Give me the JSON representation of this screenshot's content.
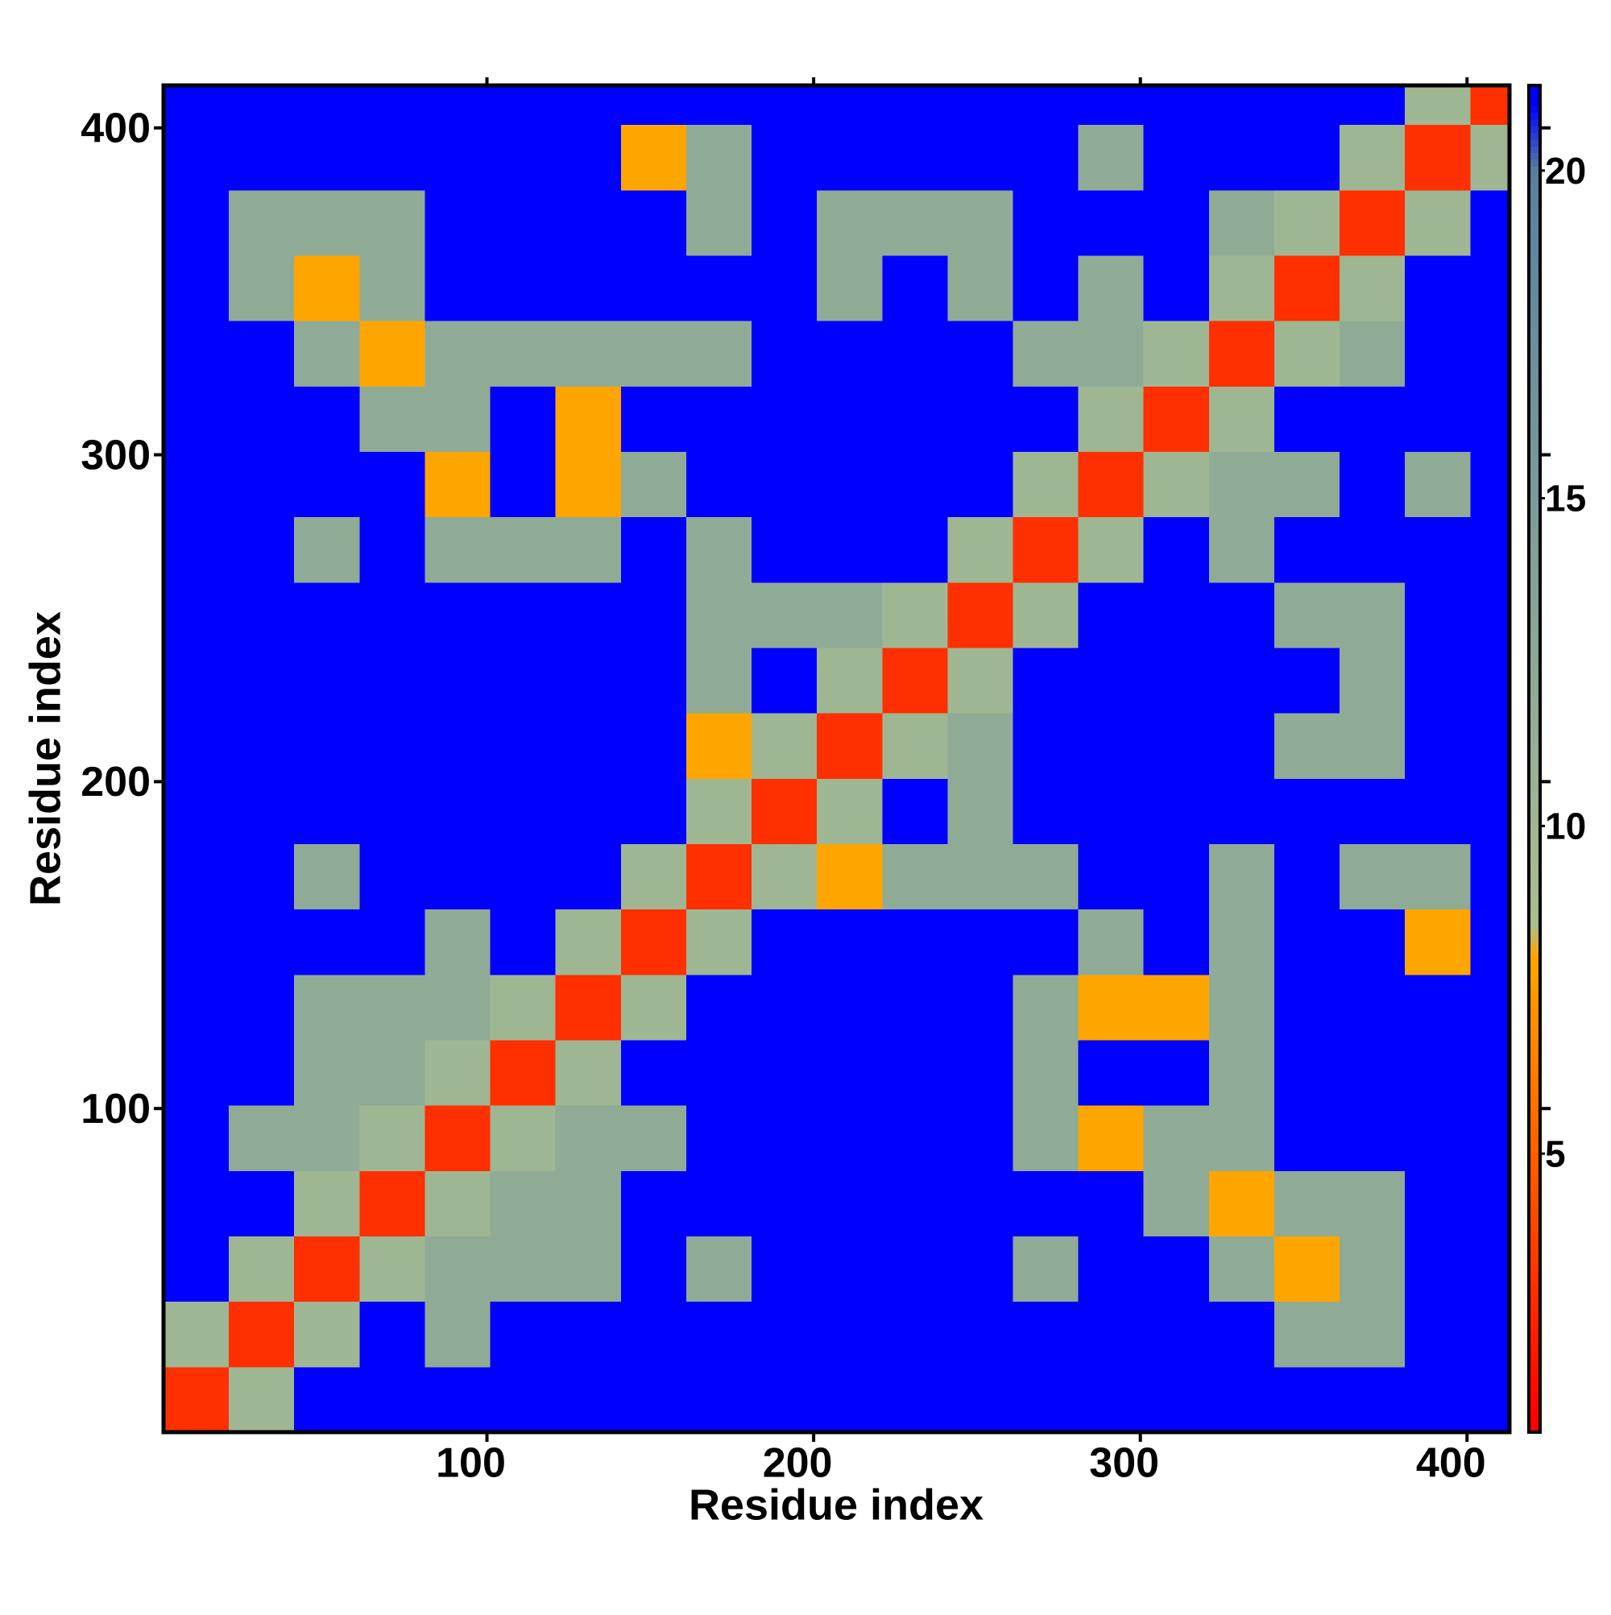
{
  "chart_data": {
    "type": "heatmap",
    "xlabel": "Residue index",
    "ylabel": "Residue index",
    "x_bins": [
      1,
      21,
      41,
      61,
      81,
      101,
      121,
      141,
      161,
      181,
      201,
      221,
      241,
      261,
      281,
      301,
      321,
      341,
      361,
      381,
      401,
      421
    ],
    "y_bins": [
      1,
      21,
      41,
      61,
      81,
      101,
      121,
      141,
      161,
      181,
      201,
      221,
      241,
      261,
      281,
      301,
      321,
      341,
      361,
      381,
      401,
      421
    ],
    "xlim": [
      1,
      413
    ],
    "ylim": [
      1,
      413
    ],
    "xticks": [
      100,
      200,
      300,
      400
    ],
    "yticks": [
      100,
      200,
      300,
      400
    ],
    "z": [
      [
        3,
        10,
        22,
        22,
        22,
        22,
        22,
        22,
        22,
        22,
        22,
        22,
        22,
        22,
        22,
        22,
        22,
        22,
        22,
        22,
        22
      ],
      [
        10,
        3,
        10,
        22,
        12,
        22,
        22,
        22,
        22,
        22,
        22,
        22,
        22,
        22,
        22,
        22,
        22,
        12,
        12,
        22,
        22
      ],
      [
        22,
        10,
        3,
        10,
        12,
        12,
        12,
        22,
        12,
        22,
        22,
        22,
        22,
        12,
        22,
        22,
        12,
        8,
        12,
        22,
        22
      ],
      [
        22,
        22,
        10,
        3,
        10,
        12,
        12,
        22,
        22,
        22,
        22,
        22,
        22,
        22,
        22,
        12,
        8,
        12,
        12,
        22,
        22
      ],
      [
        22,
        12,
        12,
        10,
        3,
        10,
        12,
        12,
        22,
        22,
        22,
        22,
        22,
        12,
        8,
        12,
        12,
        22,
        22,
        22,
        22
      ],
      [
        22,
        22,
        12,
        12,
        10,
        3,
        10,
        22,
        22,
        22,
        22,
        22,
        22,
        12,
        22,
        22,
        12,
        22,
        22,
        22,
        22
      ],
      [
        22,
        22,
        12,
        12,
        12,
        10,
        3,
        10,
        22,
        22,
        22,
        22,
        22,
        12,
        8,
        8,
        12,
        22,
        22,
        22,
        22
      ],
      [
        22,
        22,
        22,
        22,
        12,
        22,
        10,
        3,
        10,
        22,
        22,
        22,
        22,
        22,
        12,
        22,
        12,
        22,
        22,
        8,
        22
      ],
      [
        22,
        22,
        12,
        22,
        22,
        22,
        22,
        10,
        3,
        10,
        8,
        12,
        12,
        12,
        22,
        22,
        12,
        22,
        12,
        12,
        22
      ],
      [
        22,
        22,
        22,
        22,
        22,
        22,
        22,
        22,
        10,
        3,
        10,
        22,
        12,
        22,
        22,
        22,
        22,
        22,
        22,
        22,
        22
      ],
      [
        22,
        22,
        22,
        22,
        22,
        22,
        22,
        22,
        8,
        10,
        3,
        10,
        12,
        22,
        22,
        22,
        22,
        12,
        12,
        22,
        22
      ],
      [
        22,
        22,
        22,
        22,
        22,
        22,
        22,
        22,
        12,
        22,
        10,
        3,
        10,
        22,
        22,
        22,
        22,
        22,
        12,
        22,
        22
      ],
      [
        22,
        22,
        22,
        22,
        22,
        22,
        22,
        22,
        12,
        12,
        12,
        10,
        3,
        10,
        22,
        22,
        22,
        12,
        12,
        22,
        22
      ],
      [
        22,
        22,
        12,
        22,
        12,
        12,
        12,
        22,
        12,
        22,
        22,
        22,
        10,
        3,
        10,
        22,
        12,
        22,
        22,
        22,
        22
      ],
      [
        22,
        22,
        22,
        22,
        8,
        22,
        8,
        12,
        22,
        22,
        22,
        22,
        22,
        10,
        3,
        10,
        12,
        12,
        22,
        12,
        22
      ],
      [
        22,
        22,
        22,
        12,
        12,
        22,
        8,
        22,
        22,
        22,
        22,
        22,
        22,
        22,
        10,
        3,
        10,
        22,
        22,
        22,
        22
      ],
      [
        22,
        22,
        12,
        8,
        12,
        12,
        12,
        12,
        12,
        22,
        22,
        22,
        22,
        12,
        12,
        10,
        3,
        10,
        12,
        22,
        22
      ],
      [
        22,
        12,
        8,
        12,
        22,
        22,
        22,
        22,
        22,
        22,
        12,
        22,
        12,
        22,
        12,
        22,
        10,
        3,
        10,
        22,
        22
      ],
      [
        22,
        12,
        12,
        12,
        22,
        22,
        22,
        22,
        12,
        22,
        12,
        12,
        12,
        22,
        22,
        22,
        12,
        10,
        3,
        10,
        22
      ],
      [
        22,
        22,
        22,
        22,
        22,
        22,
        22,
        8,
        12,
        22,
        22,
        22,
        22,
        22,
        12,
        22,
        22,
        22,
        10,
        3,
        10
      ],
      [
        22,
        22,
        22,
        22,
        22,
        22,
        22,
        22,
        22,
        22,
        22,
        22,
        22,
        22,
        22,
        22,
        22,
        22,
        22,
        10,
        3
      ]
    ],
    "zlim": [
      0.75,
      21.3
    ],
    "zticks": [
      5,
      10,
      15,
      20
    ],
    "colorscale": [
      {
        "value": 1,
        "color": "#ff0000"
      },
      {
        "value": 8,
        "color": "#ffa500"
      },
      {
        "value": 8.5,
        "color": "#a8bf90"
      },
      {
        "value": 20,
        "color": "#5a7ea0"
      },
      {
        "value": 21,
        "color": "#0000ff"
      }
    ]
  }
}
